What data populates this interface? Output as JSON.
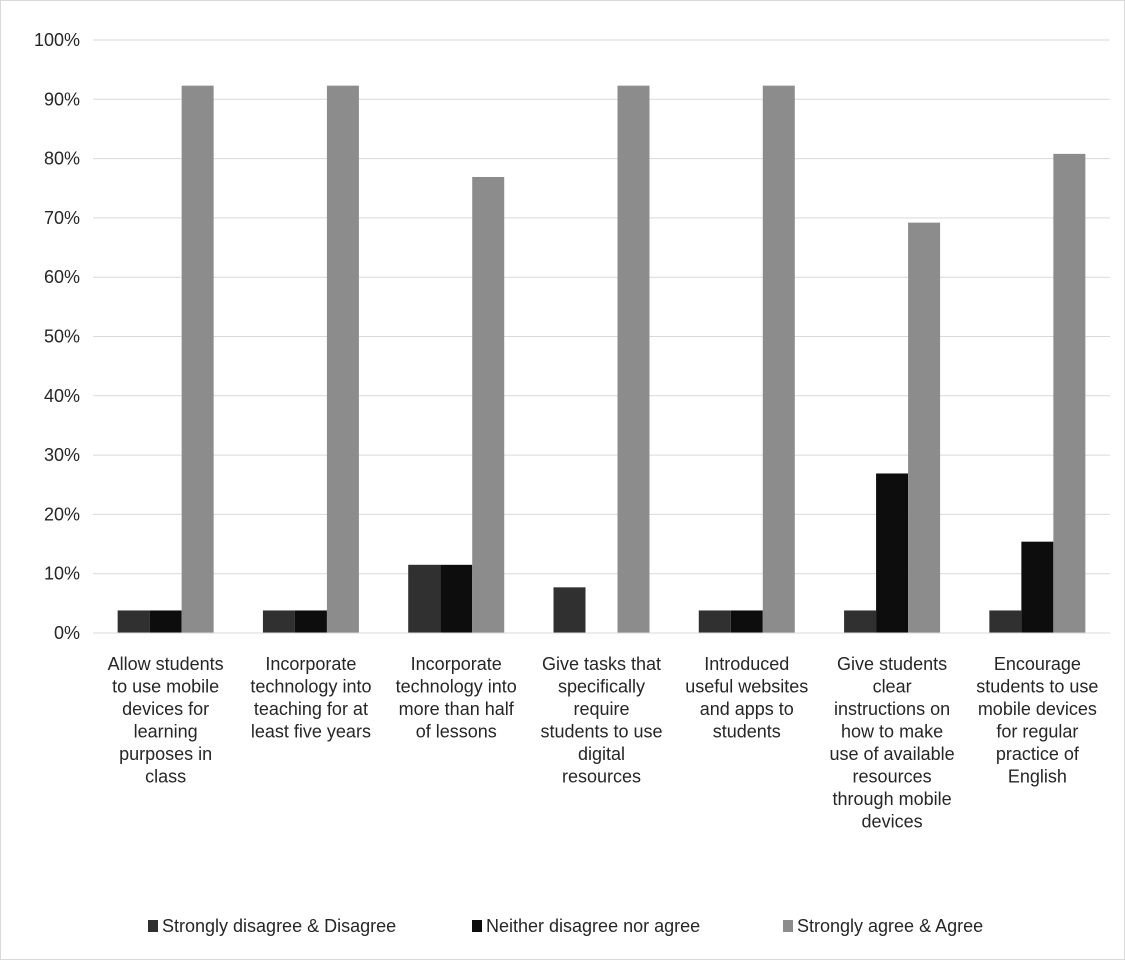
{
  "chart_data": {
    "type": "bar",
    "title": "",
    "xlabel": "",
    "ylabel": "",
    "ylim": [
      0,
      100
    ],
    "y_ticks": [
      "0%",
      "10%",
      "20%",
      "30%",
      "40%",
      "50%",
      "60%",
      "70%",
      "80%",
      "90%",
      "100%"
    ],
    "grid": true,
    "legend_position": "bottom",
    "categories": [
      [
        "Allow students",
        "to use mobile",
        "devices for",
        "learning",
        "purposes in",
        "class"
      ],
      [
        "Incorporate",
        "technology into",
        "teaching for at",
        "least five years"
      ],
      [
        "Incorporate",
        "technology into",
        "more than half",
        "of lessons"
      ],
      [
        "Give tasks that",
        "specifically",
        "require",
        "students to use",
        "digital",
        "resources"
      ],
      [
        "Introduced",
        "useful websites",
        "and apps to",
        "students"
      ],
      [
        "Give students",
        "clear",
        "instructions on",
        "how to make",
        "use of available",
        "resources",
        "through mobile",
        "devices"
      ],
      [
        "Encourage",
        "students to use",
        "mobile devices",
        "for regular",
        "practice of",
        "English"
      ]
    ],
    "series": [
      {
        "name": "Strongly disagree & Disagree",
        "color": "#303030",
        "values": [
          3.8,
          3.8,
          11.5,
          7.7,
          3.8,
          3.8,
          3.8
        ]
      },
      {
        "name": "Neither disagree nor agree",
        "color": "#0d0d0d",
        "values": [
          3.8,
          3.8,
          11.5,
          0,
          3.8,
          26.9,
          15.4
        ]
      },
      {
        "name": "Strongly agree & Agree",
        "color": "#8c8c8c",
        "values": [
          92.3,
          92.3,
          76.9,
          92.3,
          92.3,
          69.2,
          80.8
        ]
      }
    ]
  }
}
